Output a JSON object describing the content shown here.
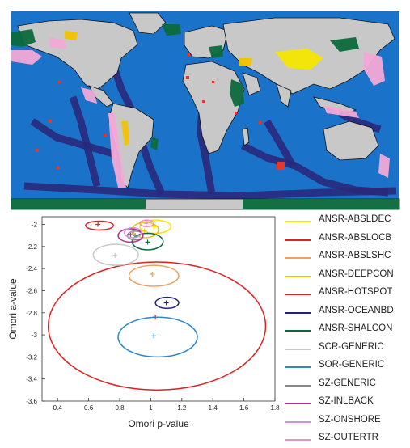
{
  "map": {
    "colors": {
      "ocean": "#1a73c9",
      "ridge": "#29297a",
      "land": "#c8c8c8",
      "stable": "#0d6a3c",
      "onshore": "#f2a9d6",
      "deep": "#f2c200",
      "volcanic": "#f5e600",
      "hotspot": "#e23a2a",
      "coast": "#111111"
    }
  },
  "chart_data": {
    "type": "scatter",
    "xlabel": "Omori p-value",
    "ylabel": "Omori a-value",
    "xlim": [
      0.3,
      1.8
    ],
    "ylim": [
      -3.6,
      -1.93
    ],
    "xticks": [
      "0.4",
      "0.6",
      "0.8",
      "1",
      "1.2",
      "1.4",
      "1.6",
      "1.8"
    ],
    "yticks": [
      "-2",
      "-2.2",
      "-2.4",
      "-2.6",
      "-2.8",
      "-3",
      "-3.2",
      "-3.4",
      "-3.6"
    ],
    "grid": false,
    "legend_position": "right",
    "series": [
      {
        "name": "ANSR-ABSLDEC",
        "color": "#f5e600",
        "center": [
          1.02,
          -2.02
        ],
        "ellipse": [
          [
            0.93,
            -1.96
          ],
          [
            1.13,
            -2.08
          ]
        ]
      },
      {
        "name": "ANSR-ABSLOCB",
        "color": "#e02020",
        "center": [
          1.03,
          -2.84
        ],
        "ellipse": [
          [
            0.34,
            -2.34
          ],
          [
            1.74,
            -3.5
          ]
        ]
      },
      {
        "name": "ANSR-ABSLSHC",
        "color": "#f0a060",
        "center": [
          1.01,
          -2.45
        ],
        "ellipse": [
          [
            0.86,
            -2.37
          ],
          [
            1.18,
            -2.56
          ]
        ]
      },
      {
        "name": "ANSR-DEEPCON",
        "color": "#f2c200",
        "center": [
          0.96,
          -2.06
        ],
        "ellipse": [
          [
            0.88,
            -1.98
          ],
          [
            1.05,
            -2.12
          ]
        ]
      },
      {
        "name": "ANSR-HOTSPOT",
        "color": "#e02020",
        "center": [
          0.66,
          -2.0
        ],
        "ellipse": [
          [
            0.58,
            -1.97
          ],
          [
            0.76,
            -2.05
          ]
        ]
      },
      {
        "name": "ANSR-OCEANBD",
        "color": "#23237a",
        "center": [
          1.1,
          -2.71
        ],
        "ellipse": [
          [
            1.03,
            -2.66
          ],
          [
            1.18,
            -2.76
          ]
        ]
      },
      {
        "name": "ANSR-SHALCON",
        "color": "#0d6a3c",
        "center": [
          0.98,
          -2.16
        ],
        "ellipse": [
          [
            0.88,
            -2.08
          ],
          [
            1.08,
            -2.23
          ]
        ]
      },
      {
        "name": "SCR-GENERIC",
        "color": "#c8c8c8",
        "center": [
          0.77,
          -2.28
        ],
        "ellipse": [
          [
            0.63,
            -2.18
          ],
          [
            0.92,
            -2.37
          ]
        ]
      },
      {
        "name": "SOR-GENERIC",
        "color": "#2c88c8",
        "center": [
          1.02,
          -3.01
        ],
        "ellipse": [
          [
            0.79,
            -2.84
          ],
          [
            1.3,
            -3.2
          ]
        ]
      },
      {
        "name": "SZ-GENERIC",
        "color": "#888888",
        "center": [
          0.9,
          -2.1
        ],
        "ellipse": [
          [
            0.85,
            -2.06
          ],
          [
            0.95,
            -2.14
          ]
        ]
      },
      {
        "name": "SZ-INLBACK",
        "color": "#b03090",
        "center": [
          0.87,
          -2.09
        ],
        "ellipse": [
          [
            0.79,
            -2.04
          ],
          [
            0.95,
            -2.16
          ]
        ]
      },
      {
        "name": "SZ-ONSHORE",
        "color": "#d090e0",
        "center": [
          0.88,
          -2.07
        ],
        "ellipse": [
          [
            0.83,
            -2.03
          ],
          [
            0.94,
            -2.12
          ]
        ]
      },
      {
        "name": "SZ-OUTERTR",
        "color": "#f090c0",
        "center": [
          0.97,
          -1.99
        ],
        "ellipse": [
          [
            0.93,
            -1.96
          ],
          [
            1.02,
            -2.02
          ]
        ]
      }
    ]
  }
}
